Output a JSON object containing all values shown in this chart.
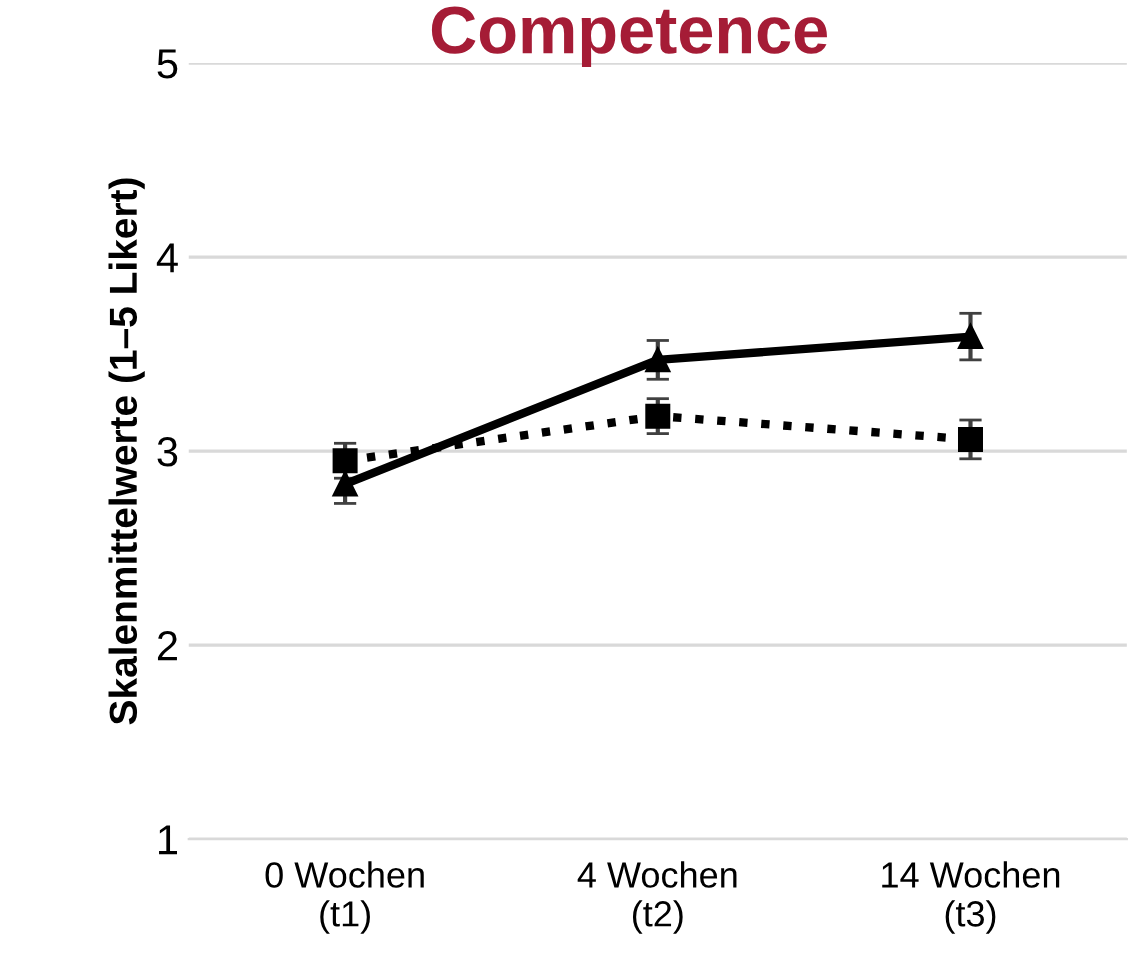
{
  "chart_data": {
    "type": "line",
    "title": "Competence",
    "ylabel": "Skalenmittelwerte (1–5 Likert)",
    "categories": [
      "0 Wochen\n(t1)",
      "4 Wochen\n(t2)",
      "14 Wochen\n(t3)"
    ],
    "series": [
      {
        "color": "#000000",
        "values": [
          2.83,
          3.47,
          3.59
        ],
        "errors": [
          0.1,
          0.1,
          0.12
        ],
        "marker": "triangle",
        "line_style": "solid"
      },
      {
        "color": "#000000",
        "values": [
          2.95,
          3.18,
          3.06
        ],
        "errors": [
          0.09,
          0.09,
          0.1
        ],
        "marker": "square",
        "line_style": "dotted"
      }
    ],
    "ylim": [
      1,
      5
    ],
    "yticks": [
      1,
      2,
      3,
      4,
      5
    ],
    "grid": "y",
    "legend": false
  }
}
